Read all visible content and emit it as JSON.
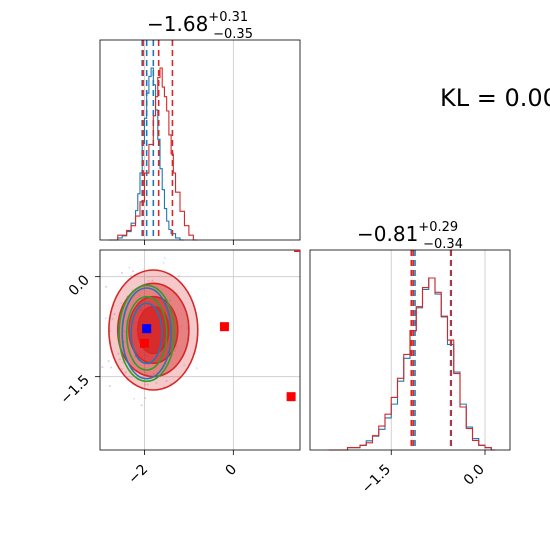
{
  "chart_data": [
    {
      "type": "histogram",
      "panel": "top-left",
      "parameter_index": 0,
      "title": {
        "median": "-1.68",
        "plus": "+0.31",
        "minus": "-0.35"
      },
      "xlim": [
        -3.0,
        1.5
      ],
      "grid": true,
      "series": [
        {
          "name": "",
          "color": "#1f77b4",
          "x": [
            -2.7,
            -2.6,
            -2.5,
            -2.4,
            -2.3,
            -2.2,
            -2.15,
            -2.1,
            -2.05,
            -2.0,
            -1.95,
            -1.9,
            -1.85,
            -1.8,
            -1.75,
            -1.7,
            -1.65,
            -1.6,
            -1.55,
            -1.5,
            -1.45,
            -1.4,
            -1.3,
            -1.2
          ],
          "counts": [
            0,
            1,
            2,
            4,
            8,
            14,
            22,
            32,
            46,
            58,
            70,
            78,
            82,
            74,
            62,
            48,
            34,
            24,
            15,
            9,
            5,
            3,
            1,
            0
          ],
          "quantiles": [
            -2.05,
            -1.8,
            -1.95
          ]
        },
        {
          "name": "",
          "color": "#d62728",
          "x": [
            -2.8,
            -2.6,
            -2.4,
            -2.3,
            -2.2,
            -2.1,
            -2.0,
            -1.9,
            -1.8,
            -1.75,
            -1.7,
            -1.65,
            -1.6,
            -1.55,
            -1.5,
            -1.45,
            -1.4,
            -1.35,
            -1.3,
            -1.2,
            -1.1,
            -1.0,
            -0.9
          ],
          "counts": [
            0,
            1,
            2,
            3,
            5,
            8,
            14,
            20,
            26,
            30,
            34,
            36,
            32,
            30,
            27,
            22,
            18,
            14,
            10,
            6,
            3,
            1,
            0
          ],
          "quantiles": [
            -2.03,
            -1.68,
            -1.37
          ]
        }
      ]
    },
    {
      "type": "scatter-contour",
      "panel": "bottom-left",
      "xlim": [
        -3.0,
        1.5
      ],
      "ylim": [
        -2.6,
        0.4
      ],
      "x_ticks": [
        "−2",
        "0"
      ],
      "y_ticks": [
        "0.0",
        "−1.5"
      ],
      "grid": true,
      "points": [
        {
          "color": "#0000ff",
          "marker": "square",
          "x": -1.95,
          "y": -0.78
        },
        {
          "color": "#ff0000",
          "marker": "square",
          "x": -0.2,
          "y": -0.75
        },
        {
          "color": "#ff0000",
          "marker": "square",
          "x": 1.3,
          "y": -1.8
        },
        {
          "color": "#ff0000",
          "marker": "square",
          "x": -2.0,
          "y": -1.0
        }
      ],
      "contours": [
        {
          "color": "#d62728",
          "fill": true,
          "center": [
            -1.8,
            -0.8
          ],
          "levels": [
            [
              1.0,
              0.9
            ],
            [
              0.8,
              0.7
            ],
            [
              0.55,
              0.5
            ],
            [
              0.35,
              0.35
            ]
          ]
        },
        {
          "color": "#2ca02c",
          "fill": false,
          "center": [
            -1.95,
            -0.85
          ],
          "levels": [
            [
              0.62,
              0.72
            ],
            [
              0.45,
              0.55
            ]
          ]
        },
        {
          "color": "#1f77b4",
          "fill": false,
          "center": [
            -1.95,
            -0.85
          ],
          "levels": [
            [
              0.55,
              0.68
            ],
            [
              0.35,
              0.45
            ]
          ]
        }
      ]
    },
    {
      "type": "histogram",
      "panel": "bottom-right",
      "parameter_index": 1,
      "title": {
        "median": "-0.81",
        "plus": "+0.29",
        "minus": "-0.34"
      },
      "xlim": [
        -2.8,
        0.4
      ],
      "x_ticks": [
        "−1.5",
        "0.0"
      ],
      "grid": true,
      "series": [
        {
          "name": "",
          "color": "#1f77b4",
          "x": [
            -2.4,
            -2.2,
            -2.0,
            -1.9,
            -1.8,
            -1.7,
            -1.6,
            -1.5,
            -1.4,
            -1.3,
            -1.2,
            -1.1,
            -1.0,
            -0.9,
            -0.8,
            -0.7,
            -0.6,
            -0.5,
            -0.4,
            -0.3,
            -0.2,
            -0.1,
            0.0,
            0.1
          ],
          "counts": [
            0,
            1,
            2,
            4,
            6,
            9,
            14,
            20,
            30,
            40,
            52,
            62,
            70,
            75,
            68,
            58,
            46,
            34,
            20,
            10,
            5,
            2,
            1,
            0
          ],
          "quantiles": [
            -1.15,
            -0.55,
            -1.12
          ]
        },
        {
          "name": "",
          "color": "#d62728",
          "x": [
            -2.5,
            -2.2,
            -2.0,
            -1.9,
            -1.8,
            -1.7,
            -1.6,
            -1.5,
            -1.4,
            -1.3,
            -1.2,
            -1.1,
            -1.0,
            -0.9,
            -0.8,
            -0.7,
            -0.6,
            -0.5,
            -0.4,
            -0.3,
            -0.2,
            -0.1,
            0.0,
            0.1
          ],
          "counts": [
            0,
            1,
            2,
            3,
            6,
            10,
            15,
            22,
            30,
            40,
            50,
            60,
            68,
            72,
            66,
            56,
            46,
            32,
            18,
            9,
            4,
            2,
            1,
            0
          ],
          "quantiles": [
            -1.18,
            -0.54,
            -1.15
          ]
        }
      ]
    }
  ],
  "annotation": {
    "kl_text": "KL = 0.00"
  }
}
